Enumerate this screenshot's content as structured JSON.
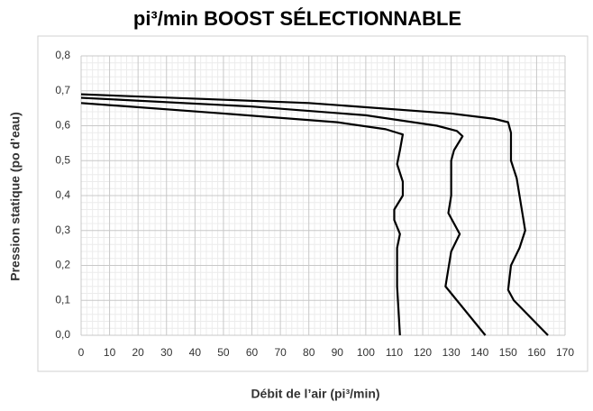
{
  "chart_data": {
    "type": "line",
    "title": "pi³/min BOOST SÉLECTIONNABLE",
    "xlabel": "Débit de l’air (pi³/min)",
    "ylabel": "Pression statique (po d’eau)",
    "xlim": [
      0,
      170
    ],
    "xticks": [
      0,
      10,
      20,
      30,
      40,
      50,
      60,
      70,
      80,
      90,
      100,
      110,
      120,
      130,
      140,
      150,
      160,
      170
    ],
    "ylim": [
      0,
      0.8
    ],
    "yticks": [
      {
        "value": 0,
        "label": "0,0"
      },
      {
        "value": 0.1,
        "label": "0,1"
      },
      {
        "value": 0.2,
        "label": "0,2"
      },
      {
        "value": 0.3,
        "label": "0,3"
      },
      {
        "value": 0.4,
        "label": "0,4"
      },
      {
        "value": 0.5,
        "label": "0,5"
      },
      {
        "value": 0.6,
        "label": "0,6"
      },
      {
        "value": 0.7,
        "label": "0,7"
      },
      {
        "value": 0.8,
        "label": "0,8"
      }
    ],
    "grid": true,
    "minor_grid": true,
    "series": [
      {
        "color": "#000000",
        "x": [
          0,
          50,
          90,
          107,
          111,
          113,
          112,
          111,
          113,
          113,
          110,
          110,
          112,
          111,
          111,
          112
        ],
        "values": [
          0.665,
          0.635,
          0.61,
          0.59,
          0.58,
          0.575,
          0.53,
          0.49,
          0.44,
          0.4,
          0.36,
          0.33,
          0.29,
          0.25,
          0.14,
          0.0
        ]
      },
      {
        "color": "#000000",
        "x": [
          0,
          60,
          100,
          125,
          132,
          134,
          131,
          130,
          130,
          129,
          133,
          130,
          129,
          128,
          131,
          142
        ],
        "values": [
          0.68,
          0.655,
          0.63,
          0.6,
          0.585,
          0.57,
          0.53,
          0.5,
          0.4,
          0.35,
          0.29,
          0.24,
          0.19,
          0.14,
          0.11,
          0.0
        ]
      },
      {
        "color": "#000000",
        "x": [
          0,
          80,
          130,
          145,
          150,
          151,
          151,
          153,
          155,
          156,
          154,
          151,
          150,
          152,
          164
        ],
        "values": [
          0.69,
          0.665,
          0.635,
          0.62,
          0.61,
          0.58,
          0.5,
          0.45,
          0.35,
          0.3,
          0.25,
          0.2,
          0.13,
          0.1,
          0.0
        ]
      }
    ]
  }
}
